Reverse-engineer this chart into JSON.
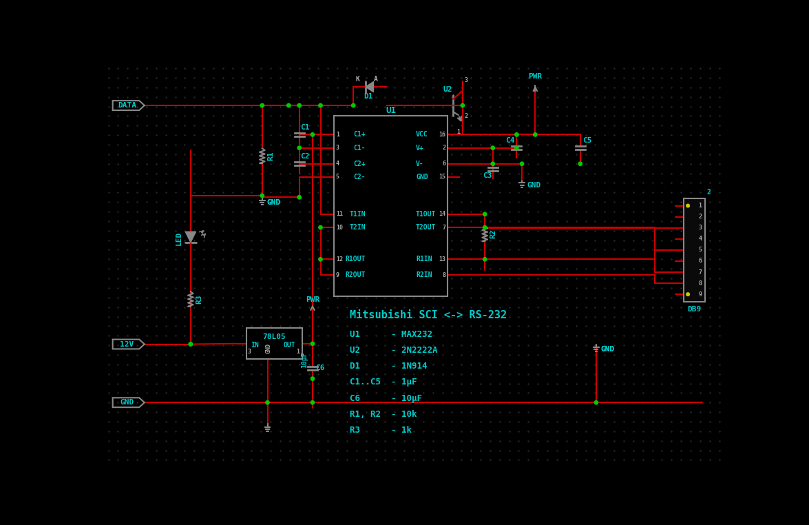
{
  "bg_color": "#000000",
  "wire_color": "#cc0000",
  "component_color": "#888888",
  "label_color": "#00cccc",
  "junction_color": "#00cc00",
  "title": "Mitsubishi SCI <-> RS-232",
  "bom_lines": [
    "U1      - MAX232",
    "U2      - 2N2222A",
    "D1      - 1N914",
    "C1..C5  - 1μF",
    "C6      - 10μF",
    "R1, R2  - 10k",
    "R3      - 1k"
  ]
}
